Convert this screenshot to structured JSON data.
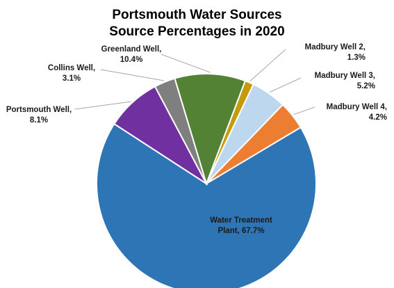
{
  "chart_data": {
    "type": "pie",
    "title_lines": [
      "Portsmouth Water Sources",
      "Source Percentages in 2020"
    ],
    "slices": [
      {
        "name": "Madbury Well 2",
        "value": 1.3,
        "color": "#c59a0b",
        "label_lines": [
          "Madbury Well 2,",
          "1.3%"
        ]
      },
      {
        "name": "Madbury Well 3",
        "value": 5.2,
        "color": "#bdd7ee",
        "label_lines": [
          "Madbury Well 3,",
          "5.2%"
        ]
      },
      {
        "name": "Madbury Well 4",
        "value": 4.2,
        "color": "#ed7d31",
        "label_lines": [
          "Madbury Well 4,",
          "4.2%"
        ]
      },
      {
        "name": "Water Treatment Plant",
        "value": 67.7,
        "color": "#2e75b6",
        "label_lines": [
          "Water Treatment",
          "Plant, 67.7%"
        ]
      },
      {
        "name": "Portsmouth Well",
        "value": 8.1,
        "color": "#7030a0",
        "label_lines": [
          "Portsmouth Well,",
          "8.1%"
        ]
      },
      {
        "name": "Collins Well",
        "value": 3.1,
        "color": "#7f7f7f",
        "label_lines": [
          "Collins Well,",
          "3.1%"
        ]
      },
      {
        "name": "Greenland Well",
        "value": 10.4,
        "color": "#548235",
        "label_lines": [
          "Greenland Well,",
          "10.4%"
        ]
      }
    ]
  }
}
